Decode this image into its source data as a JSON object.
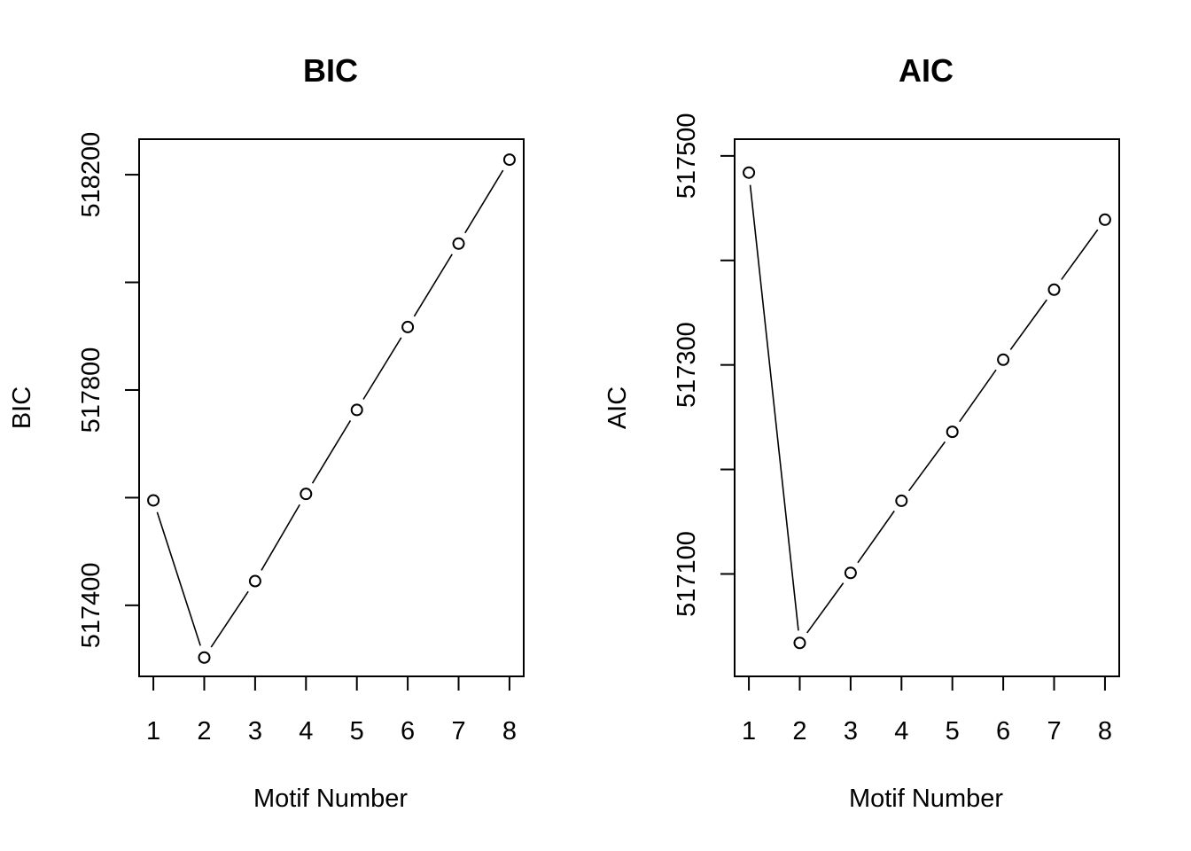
{
  "chart_data": [
    {
      "type": "line",
      "title": "BIC",
      "xlabel": "Motif Number",
      "ylabel": "BIC",
      "x": [
        1,
        2,
        3,
        4,
        5,
        6,
        7,
        8
      ],
      "y": [
        517595,
        517303,
        517445,
        517607,
        517763,
        517917,
        518072,
        518228
      ],
      "xticks": [
        "1",
        "2",
        "3",
        "4",
        "5",
        "6",
        "7",
        "8"
      ],
      "yticks": [
        517400,
        517800,
        518200
      ],
      "ytick_labels": [
        "517400",
        "517800",
        "518200"
      ],
      "xlim": [
        0.72,
        8.28
      ],
      "ylim": [
        517268,
        518266
      ],
      "grid": false
    },
    {
      "type": "line",
      "title": "AIC",
      "xlabel": "Motif Number",
      "ylabel": "AIC",
      "x": [
        1,
        2,
        3,
        4,
        5,
        6,
        7,
        8
      ],
      "y": [
        517484,
        517034,
        517101,
        517170,
        517236,
        517305,
        517372,
        517439
      ],
      "xticks": [
        "1",
        "2",
        "3",
        "4",
        "5",
        "6",
        "7",
        "8"
      ],
      "yticks": [
        517100,
        517300,
        517500
      ],
      "ytick_labels": [
        "517100",
        "517300",
        "517500"
      ],
      "xlim": [
        0.72,
        8.28
      ],
      "ylim": [
        517002,
        517516
      ],
      "grid": false
    }
  ]
}
